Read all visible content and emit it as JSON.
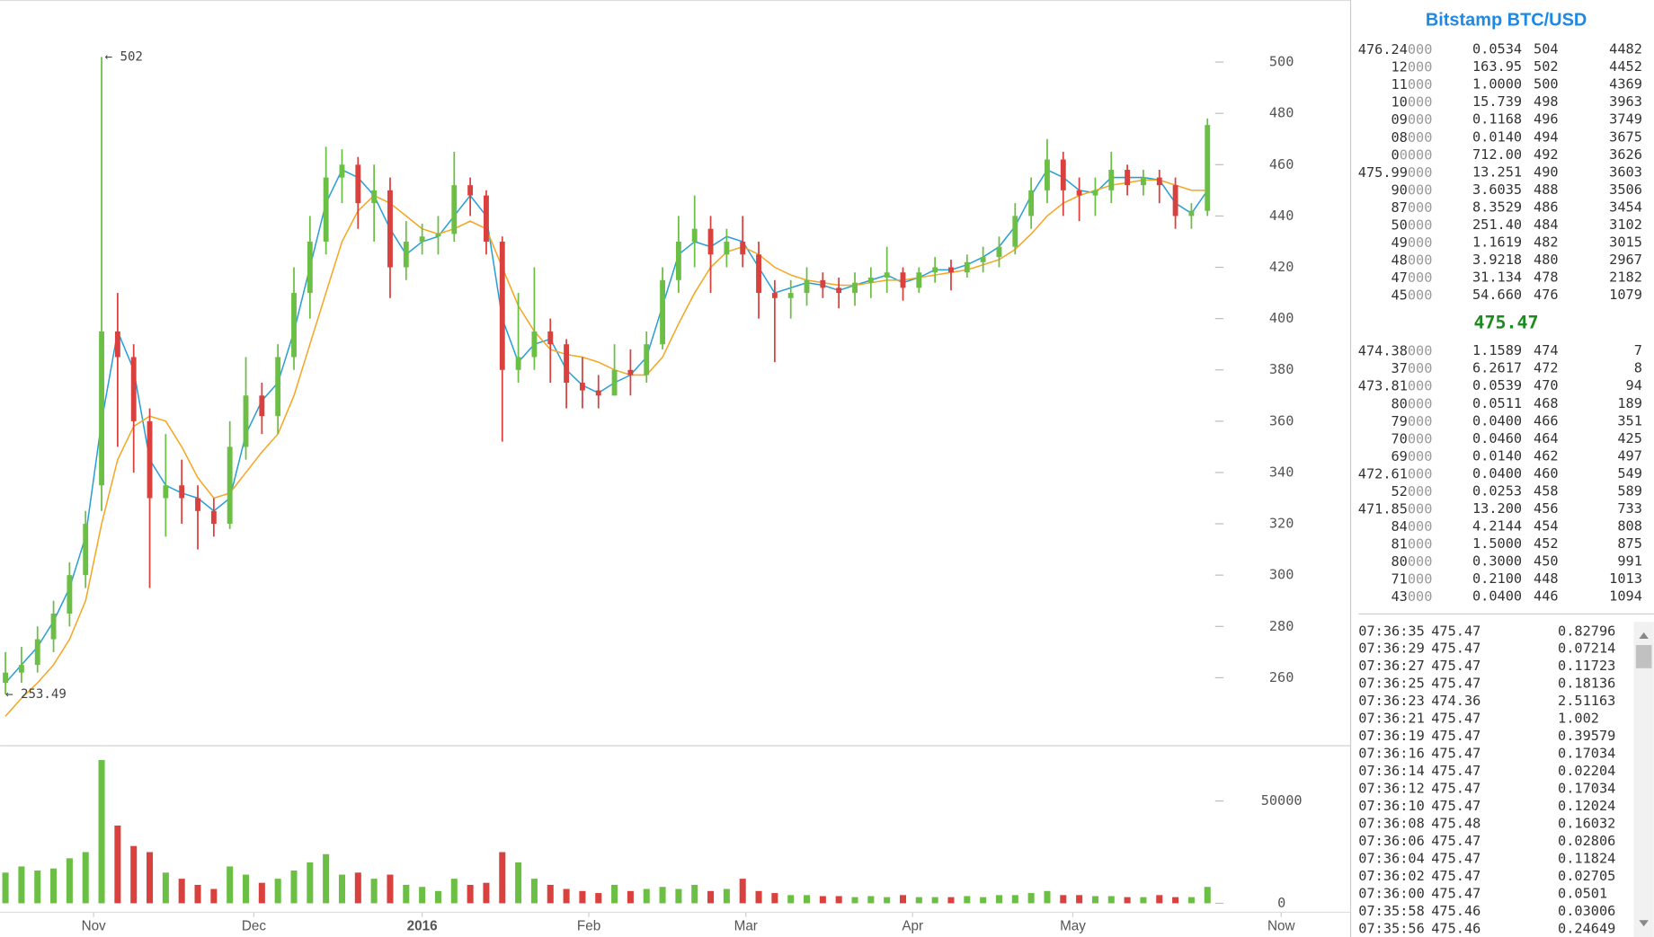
{
  "chart_data": [
    {
      "type": "ohlc",
      "open": [
        258,
        262,
        265,
        275,
        285,
        300,
        335,
        395,
        385,
        360,
        330,
        335,
        330,
        325,
        320,
        350,
        370,
        362,
        385,
        410,
        430,
        455,
        460,
        445,
        450,
        420,
        430,
        432,
        433,
        452,
        448,
        430,
        380,
        385,
        395,
        390,
        375,
        372,
        370,
        380,
        378,
        390,
        415,
        430,
        435,
        425,
        430,
        425,
        410,
        408,
        410,
        415,
        412,
        410,
        414,
        416,
        418,
        412,
        418,
        420,
        418,
        422,
        424,
        428,
        440,
        450,
        462,
        450,
        448,
        450,
        458,
        452,
        455,
        452,
        440,
        442
      ],
      "high": [
        270,
        272,
        280,
        290,
        305,
        325,
        502,
        410,
        390,
        365,
        355,
        345,
        335,
        330,
        360,
        385,
        375,
        390,
        420,
        440,
        467,
        466,
        463,
        460,
        455,
        438,
        437,
        440,
        465,
        455,
        450,
        432,
        410,
        420,
        400,
        392,
        385,
        378,
        390,
        388,
        395,
        420,
        440,
        448,
        440,
        435,
        440,
        430,
        415,
        415,
        420,
        418,
        416,
        418,
        420,
        428,
        420,
        420,
        424,
        423,
        425,
        428,
        432,
        445,
        455,
        470,
        465,
        455,
        455,
        465,
        460,
        458,
        458,
        455,
        445,
        478
      ],
      "low": [
        253.49,
        258,
        262,
        270,
        280,
        295,
        325,
        350,
        340,
        295,
        315,
        320,
        310,
        315,
        318,
        345,
        355,
        355,
        380,
        400,
        425,
        445,
        435,
        430,
        408,
        415,
        425,
        425,
        430,
        440,
        425,
        352,
        375,
        380,
        375,
        365,
        365,
        365,
        370,
        370,
        375,
        388,
        410,
        420,
        410,
        420,
        420,
        400,
        383,
        400,
        405,
        408,
        404,
        405,
        408,
        410,
        407,
        410,
        414,
        411,
        416,
        418,
        420,
        425,
        435,
        445,
        440,
        438,
        440,
        445,
        448,
        448,
        445,
        435,
        435,
        440
      ],
      "close": [
        262,
        265,
        275,
        285,
        300,
        320,
        395,
        385,
        360,
        330,
        335,
        330,
        325,
        320,
        350,
        370,
        362,
        385,
        410,
        430,
        455,
        460,
        445,
        450,
        420,
        430,
        432,
        433,
        452,
        448,
        430,
        380,
        385,
        395,
        390,
        375,
        372,
        370,
        380,
        378,
        390,
        415,
        430,
        435,
        425,
        430,
        425,
        410,
        408,
        410,
        415,
        412,
        410,
        414,
        416,
        418,
        412,
        418,
        420,
        418,
        422,
        424,
        428,
        440,
        450,
        462,
        450,
        448,
        450,
        458,
        452,
        455,
        452,
        440,
        442,
        475.47
      ],
      "up_color": "#6cbf45",
      "down_color": "#d9413f",
      "lines": [
        {
          "color": "#2a9fd6",
          "values": [
            258,
            265,
            272,
            282,
            295,
            315,
            360,
            395,
            380,
            345,
            335,
            332,
            330,
            325,
            330,
            355,
            368,
            375,
            395,
            420,
            445,
            458,
            455,
            448,
            435,
            425,
            430,
            432,
            440,
            448,
            440,
            400,
            383,
            390,
            392,
            380,
            374,
            371,
            375,
            378,
            385,
            405,
            425,
            430,
            428,
            432,
            430,
            420,
            410,
            412,
            414,
            413,
            411,
            413,
            415,
            417,
            414,
            416,
            419,
            419,
            421,
            424,
            428,
            436,
            448,
            458,
            455,
            450,
            449,
            455,
            455,
            455,
            454,
            445,
            441,
            450
          ]
        },
        {
          "color": "#f5a623",
          "values": [
            245,
            252,
            258,
            265,
            275,
            290,
            320,
            345,
            358,
            362,
            360,
            350,
            338,
            330,
            332,
            340,
            348,
            355,
            370,
            390,
            410,
            430,
            442,
            448,
            445,
            440,
            435,
            433,
            435,
            438,
            435,
            420,
            405,
            395,
            388,
            386,
            385,
            383,
            380,
            378,
            378,
            385,
            398,
            410,
            420,
            426,
            428,
            425,
            420,
            417,
            415,
            414,
            413,
            413,
            414,
            415,
            415,
            416,
            417,
            418,
            419,
            421,
            423,
            427,
            433,
            440,
            445,
            448,
            450,
            452,
            453,
            454,
            454,
            452,
            450,
            450
          ]
        }
      ],
      "annotations": [
        "← 502",
        "← 253.49"
      ],
      "xlim": [
        -0.33,
        83.9
      ],
      "ylim": [
        233.7,
        524.2
      ],
      "yticks": [
        260,
        280,
        300,
        320,
        340,
        360,
        380,
        400,
        420,
        440,
        460,
        480,
        500
      ]
    },
    {
      "type": "bar",
      "values": [
        15000,
        18000,
        16000,
        17000,
        22000,
        25000,
        70000,
        38000,
        28000,
        25000,
        15000,
        12000,
        9000,
        7000,
        18000,
        14000,
        10000,
        12000,
        16000,
        20000,
        24000,
        14000,
        15000,
        12000,
        14000,
        9000,
        8000,
        6000,
        12000,
        9000,
        10000,
        25000,
        20000,
        12000,
        9000,
        7000,
        6000,
        5000,
        9000,
        6000,
        7000,
        8000,
        7000,
        9000,
        6000,
        7000,
        12000,
        6000,
        5000,
        4000,
        4000,
        3500,
        3500,
        3000,
        3500,
        3000,
        4000,
        3000,
        3000,
        3000,
        3500,
        3000,
        4000,
        4000,
        5000,
        6000,
        4000,
        4000,
        3500,
        3500,
        3000,
        3000,
        4000,
        3000,
        3000,
        8000
      ],
      "xlim": [
        -0.33,
        83.9
      ],
      "ylim": [
        0,
        74700
      ],
      "yticks": [
        0,
        50000
      ],
      "xticks": [
        {
          "value": 5.5,
          "label": "Nov"
        },
        {
          "value": 15.5,
          "label": "Dec"
        },
        {
          "value": 26,
          "label": "2016"
        },
        {
          "value": 36.4,
          "label": "Feb"
        },
        {
          "value": 46.2,
          "label": "Mar"
        },
        {
          "value": 56.6,
          "label": "Apr"
        },
        {
          "value": 66.6,
          "label": "May"
        },
        {
          "value": 79.6,
          "label": "Now"
        }
      ]
    }
  ],
  "order_book": {
    "title": "Bitstamp BTC/USD",
    "asks": [
      [
        "476.24",
        "000",
        "0.0534",
        "504",
        "4482"
      ],
      [
        "12",
        "000",
        "163.95",
        "502",
        "4452"
      ],
      [
        "11",
        "000",
        "1.0000",
        "500",
        "4369"
      ],
      [
        "10",
        "000",
        "15.739",
        "498",
        "3963"
      ],
      [
        "09",
        "000",
        "0.1168",
        "496",
        "3749"
      ],
      [
        "08",
        "000",
        "0.0140",
        "494",
        "3675"
      ],
      [
        "0",
        "0000",
        "712.00",
        "492",
        "3626"
      ],
      [
        "475.99",
        "000",
        "13.251",
        "490",
        "3603"
      ],
      [
        "90",
        "000",
        "3.6035",
        "488",
        "3506"
      ],
      [
        "87",
        "000",
        "8.3529",
        "486",
        "3454"
      ],
      [
        "50",
        "000",
        "251.40",
        "484",
        "3102"
      ],
      [
        "49",
        "000",
        "1.1619",
        "482",
        "3015"
      ],
      [
        "48",
        "000",
        "3.9218",
        "480",
        "2967"
      ],
      [
        "47",
        "000",
        "31.134",
        "478",
        "2182"
      ],
      [
        "45",
        "000",
        "54.660",
        "476",
        "1079"
      ]
    ],
    "last": "475.47",
    "bids": [
      [
        "474.38",
        "000",
        "1.1589",
        "474",
        "7"
      ],
      [
        "37",
        "000",
        "6.2617",
        "472",
        "8"
      ],
      [
        "473.81",
        "000",
        "0.0539",
        "470",
        "94"
      ],
      [
        "80",
        "000",
        "0.0511",
        "468",
        "189"
      ],
      [
        "79",
        "000",
        "0.0400",
        "466",
        "351"
      ],
      [
        "70",
        "000",
        "0.0460",
        "464",
        "425"
      ],
      [
        "69",
        "000",
        "0.0140",
        "462",
        "497"
      ],
      [
        "472.61",
        "000",
        "0.0400",
        "460",
        "549"
      ],
      [
        "52",
        "000",
        "0.0253",
        "458",
        "589"
      ],
      [
        "471.85",
        "000",
        "13.200",
        "456",
        "733"
      ],
      [
        "84",
        "000",
        "4.2144",
        "454",
        "808"
      ],
      [
        "81",
        "000",
        "1.5000",
        "452",
        "875"
      ],
      [
        "80",
        "000",
        "0.3000",
        "450",
        "991"
      ],
      [
        "71",
        "000",
        "0.2100",
        "448",
        "1013"
      ],
      [
        "43",
        "000",
        "0.0400",
        "446",
        "1094"
      ]
    ]
  },
  "trades": [
    {
      "time": "07:36:35",
      "price": "475.47",
      "amount": "0.82796",
      "color": "#2e9a2e"
    },
    {
      "time": "07:36:29",
      "price": "475.47",
      "amount": "0.07214",
      "color": "#2e9a2e"
    },
    {
      "time": "07:36:27",
      "price": "475.47",
      "amount": "0.11723",
      "color": "#2e9a2e"
    },
    {
      "time": "07:36:25",
      "price": "475.47",
      "amount": "0.18136",
      "color": "#2e9a2e"
    },
    {
      "time": "07:36:23",
      "price": "474.36",
      "amount": "2.51163",
      "color": "#d93030"
    },
    {
      "time": "07:36:21",
      "price": "475.47",
      "amount": "1.002",
      "color": "#2e9a2e"
    },
    {
      "time": "07:36:19",
      "price": "475.47",
      "amount": "0.39579",
      "color": "#2e9a2e"
    },
    {
      "time": "07:36:16",
      "price": "475.47",
      "amount": "0.17034",
      "color": "#2e9a2e"
    },
    {
      "time": "07:36:14",
      "price": "475.47",
      "amount": "0.02204",
      "color": "#2e9a2e"
    },
    {
      "time": "07:36:12",
      "price": "475.47",
      "amount": "0.17034",
      "color": "#2e9a2e"
    },
    {
      "time": "07:36:10",
      "price": "475.47",
      "amount": "0.12024",
      "color": "#2e9a2e"
    },
    {
      "time": "07:36:08",
      "price": "475.48",
      "amount": "0.16032",
      "color": "#2e9a2e"
    },
    {
      "time": "07:36:06",
      "price": "475.47",
      "amount": "0.02806",
      "color": "#2e9a2e"
    },
    {
      "time": "07:36:04",
      "price": "475.47",
      "amount": "0.11824",
      "color": "#2e9a2e"
    },
    {
      "time": "07:36:02",
      "price": "475.47",
      "amount": "0.02705",
      "color": "#2e9a2e"
    },
    {
      "time": "07:36:00",
      "price": "475.47",
      "amount": "0.0501",
      "color": "#2e9a2e"
    },
    {
      "time": "07:35:58",
      "price": "475.46",
      "amount": "0.03006",
      "color": "#2e9a2e"
    },
    {
      "time": "07:35:56",
      "price": "475.46",
      "amount": "0.24649",
      "color": "#2e9a2e"
    }
  ]
}
